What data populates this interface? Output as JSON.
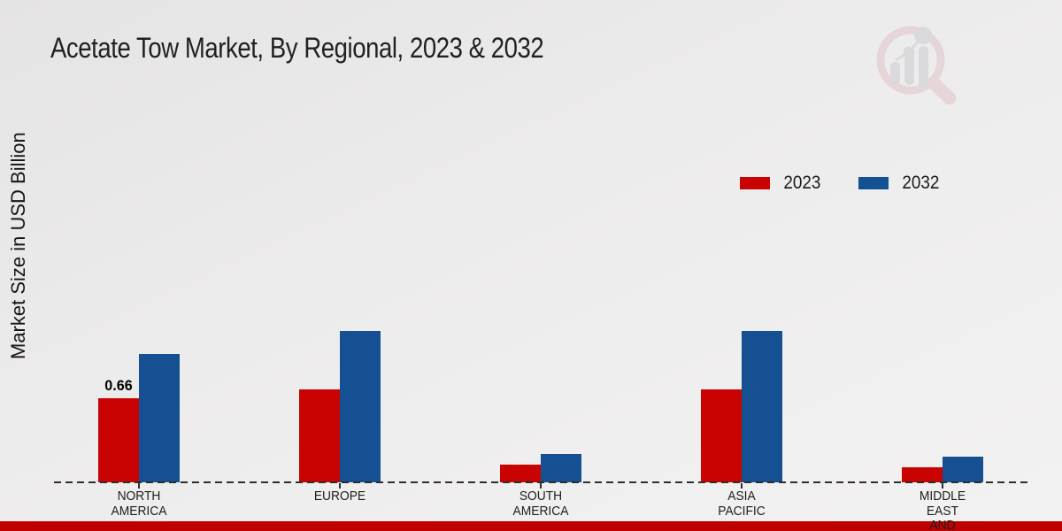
{
  "title": "Acetate Tow Market, By Regional, 2023 & 2032",
  "y_axis_label": "Market Size in USD Billion",
  "legend": {
    "items": [
      {
        "label": "2023",
        "color": "#c90202"
      },
      {
        "label": "2032",
        "color": "#155192"
      }
    ]
  },
  "chart_data": {
    "type": "bar",
    "title": "Acetate Tow Market, By Regional, 2023 & 2032",
    "ylabel": "Market Size in USD Billion",
    "units": "USD Billion",
    "categories": [
      "NORTH AMERICA",
      "EUROPE",
      "SOUTH AMERICA",
      "ASIA PACIFIC",
      "MIDDLE EAST AND"
    ],
    "category_display_lines": [
      "NORTH\nAMERICA",
      "EUROPE",
      "SOUTH\nAMERICA",
      "ASIA\nPACIFIC",
      "MIDDLE\nEAST\nAND"
    ],
    "series": [
      {
        "name": "2023",
        "color": "#c90202",
        "values": [
          0.66,
          0.73,
          0.14,
          0.73,
          0.12
        ],
        "data_labels": [
          "0.66",
          "",
          "",
          "",
          ""
        ]
      },
      {
        "name": "2032",
        "color": "#155192",
        "values": [
          1.01,
          1.19,
          0.22,
          1.19,
          0.2
        ],
        "data_labels": [
          "",
          "",
          "",
          "",
          ""
        ]
      }
    ],
    "ylim": [
      0,
      1.4
    ],
    "grid": false,
    "y_axis_ticks_visible": false,
    "baseline_style": "dashed",
    "legend_position": "upper right"
  },
  "footer": {
    "banner_color": "#c00000"
  },
  "logo": {
    "name": "market-research-future-logo-watermark"
  }
}
